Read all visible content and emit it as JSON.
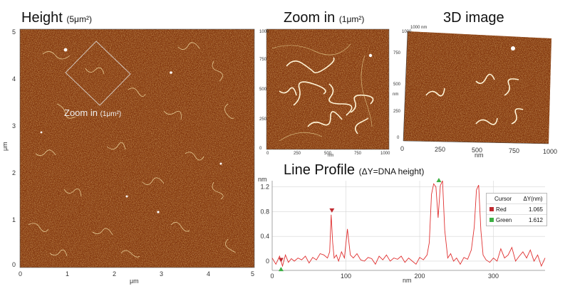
{
  "panels": {
    "height": {
      "title": "Height",
      "title_sub": "(5μm²)",
      "x_ticks": [
        "0",
        "1",
        "2",
        "3",
        "4",
        "5"
      ],
      "y_ticks": [
        "0",
        "1",
        "2",
        "3",
        "4",
        "5"
      ],
      "x_unit": "μm",
      "y_unit": "μm",
      "zoom_label": "Zoom in",
      "zoom_sub": "(1μm²)"
    },
    "zoom": {
      "title": "Zoom in",
      "title_sub": "(1μm²)",
      "x_ticks": [
        "0",
        "250",
        "500",
        "750",
        "1000"
      ],
      "y_ticks": [
        "0",
        "250",
        "500",
        "750",
        "1000"
      ],
      "unit": "nm"
    },
    "threed": {
      "title": "3D image",
      "x_ticks": [
        "0",
        "250",
        "500",
        "750",
        "1000"
      ],
      "y_ticks": [
        "0",
        "250",
        "500",
        "750",
        "1000"
      ],
      "unit": "nm",
      "corner_label": "1000 nm"
    }
  },
  "profile": {
    "title": "Line Profile",
    "title_sub": "(ΔY=DNA height)",
    "y_unit": "nm",
    "x_unit": "nm",
    "legend": {
      "header": [
        "Cursor",
        "ΔY(nm)"
      ],
      "rows": [
        {
          "name": "Red",
          "value": "1.065",
          "color": "#c0292f"
        },
        {
          "name": "Green",
          "value": "1.612",
          "color": "#3cb043"
        }
      ]
    }
  },
  "chart_data": {
    "type": "line",
    "title": "Line Profile",
    "xlabel": "nm",
    "ylabel": "nm",
    "xlim": [
      0,
      370
    ],
    "ylim": [
      -0.15,
      1.3
    ],
    "x_ticks": [
      "0",
      "100",
      "200",
      "300"
    ],
    "y_ticks": [
      "0",
      "0.4",
      "0.8",
      "1.2"
    ],
    "series": [
      {
        "name": "",
        "color": "#e03030",
        "x": [
          0,
          5,
          10,
          14,
          18,
          22,
          26,
          30,
          35,
          40,
          45,
          50,
          55,
          60,
          65,
          70,
          75,
          78,
          80,
          82,
          84,
          87,
          90,
          94,
          98,
          102,
          106,
          110,
          115,
          120,
          125,
          130,
          135,
          140,
          145,
          150,
          155,
          160,
          165,
          170,
          175,
          180,
          185,
          190,
          195,
          200,
          205,
          210,
          213,
          216,
          219,
          222,
          225,
          228,
          231,
          234,
          238,
          242,
          246,
          250,
          255,
          260,
          265,
          270,
          274,
          277,
          280,
          283,
          286,
          290,
          295,
          300,
          305,
          310,
          315,
          320,
          325,
          330,
          335,
          340,
          345,
          350,
          355,
          360,
          365,
          370
        ],
        "y": [
          0.05,
          -0.05,
          0.08,
          -0.08,
          0.1,
          -0.02,
          0.04,
          0.0,
          0.05,
          0.02,
          0.08,
          -0.03,
          0.06,
          0.02,
          0.12,
          0.1,
          0.05,
          0.15,
          0.75,
          0.3,
          0.05,
          0.1,
          0.0,
          0.15,
          0.05,
          0.52,
          0.1,
          0.05,
          0.12,
          0.02,
          0.0,
          0.06,
          0.04,
          -0.05,
          0.08,
          0.02,
          0.1,
          0.0,
          0.05,
          0.03,
          0.08,
          -0.02,
          0.05,
          0.0,
          -0.05,
          0.06,
          0.02,
          0.1,
          0.3,
          1.08,
          1.25,
          1.2,
          0.7,
          1.22,
          1.3,
          0.5,
          0.05,
          0.12,
          0.0,
          0.05,
          -0.05,
          0.06,
          0.03,
          0.18,
          0.55,
          1.15,
          1.23,
          0.5,
          0.1,
          0.02,
          -0.02,
          0.05,
          0.0,
          0.2,
          0.05,
          0.1,
          0.22,
          0.0,
          0.08,
          0.15,
          0.05,
          0.18,
          0.0,
          0.1,
          -0.08,
          0.05
        ]
      }
    ],
    "cursors": [
      {
        "name": "Red",
        "x": 81,
        "y": 0.76,
        "color": "#c0292f"
      },
      {
        "name": "Red",
        "x": 12,
        "y": -0.04,
        "color": "#c0292f"
      },
      {
        "name": "Green",
        "x": 226,
        "y": 1.3,
        "color": "#3cb043"
      },
      {
        "name": "Green",
        "x": 12,
        "y": -0.14,
        "color": "#3cb043"
      }
    ]
  }
}
